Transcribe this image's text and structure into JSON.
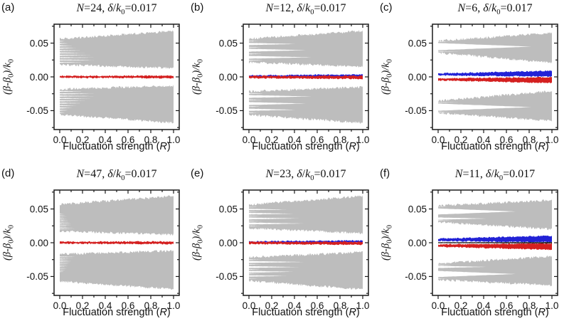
{
  "figure": {
    "axes": {
      "x_label": "Fluctuation strength (R)",
      "y_label": "(β-β₀)/k₀",
      "x_label_segments": [
        {
          "t": "Fluctuation strength ("
        },
        {
          "t": "R",
          "i": true
        },
        {
          "t": ")"
        }
      ],
      "y_label_segments": [
        {
          "t": "("
        },
        {
          "t": "β",
          "i": true
        },
        {
          "t": "-"
        },
        {
          "t": "β",
          "i": true
        },
        {
          "t": "0",
          "sub": true
        },
        {
          "t": ")/"
        },
        {
          "t": "k",
          "i": true
        },
        {
          "t": "0",
          "sub": true
        }
      ],
      "x_tick_labels": [
        "0.0",
        "0.2",
        "0.4",
        "0.6",
        "0.8",
        "1.0"
      ],
      "x_tick_values": [
        0,
        0.2,
        0.4,
        0.6,
        0.8,
        1.0
      ],
      "x_minor_ticks": [
        0.1,
        0.3,
        0.5,
        0.7,
        0.9
      ],
      "y_tick_labels": [
        "0.05",
        "0.00",
        "-0.05"
      ],
      "y_tick_values": [
        0.05,
        0,
        -0.05
      ],
      "y_minor_ticks": [
        0.075,
        0.025,
        -0.025,
        -0.075
      ],
      "xlim_draw": [
        -0.05,
        1.05
      ],
      "ylim_draw": [
        -0.078,
        0.078
      ],
      "grid": false
    },
    "colors": {
      "gray": "#bdbdbd",
      "red": "#d42020",
      "blue": "#2222d6",
      "black": "#1a1a1a",
      "axis": "#1a1a1a",
      "text": "#111111"
    }
  },
  "chart_data": [
    {
      "type": "scatter",
      "panel_label": "(a)",
      "title": "N=24, δ/k₀=0.017",
      "title_segments": [
        {
          "t": "N",
          "i": true
        },
        {
          "t": "=24, "
        },
        {
          "t": "δ",
          "i": true
        },
        {
          "t": "/"
        },
        {
          "t": "k",
          "i": true
        },
        {
          "t": "0",
          "sub": true
        },
        {
          "t": "=0.017"
        }
      ],
      "N": 24,
      "delta_over_k0": 0.017,
      "xlabel": "Fluctuation strength (R)",
      "ylabel": "(β-β₀)/k₀",
      "xlim": [
        0,
        1
      ],
      "ylim": [
        -0.078,
        0.078
      ],
      "bands": {
        "gray_envelope": {
          "at_R0": [
            0.018,
            0.056
          ],
          "at_R1": [
            0.013,
            0.068
          ],
          "mirrored": true
        },
        "gaps_y_h_closeR": [
          [
            0.0215,
            0.0013,
            0.2
          ],
          [
            0.025,
            0.0013,
            0.33
          ],
          [
            0.0285,
            0.0013,
            0.3
          ],
          [
            0.032,
            0.0013,
            0.27
          ],
          [
            0.0355,
            0.0013,
            0.23
          ],
          [
            0.039,
            0.0013,
            0.19
          ],
          [
            0.0425,
            0.0013,
            0.15
          ],
          [
            0.046,
            0.0013,
            0.11
          ],
          [
            0.0495,
            0.0012,
            0.07
          ],
          [
            0.0528,
            0.001,
            0.045
          ]
        ],
        "center": [
          {
            "color": "red",
            "at_R0": [
              -0.0013,
              0.0013
            ],
            "at_R1": [
              -0.0019,
              0.0019
            ]
          }
        ]
      }
    },
    {
      "type": "scatter",
      "panel_label": "(b)",
      "title": "N=12, δ/k₀=0.017",
      "title_segments": [
        {
          "t": "N",
          "i": true
        },
        {
          "t": "=12, "
        },
        {
          "t": "δ",
          "i": true
        },
        {
          "t": "/"
        },
        {
          "t": "k",
          "i": true
        },
        {
          "t": "0",
          "sub": true
        },
        {
          "t": "=0.017"
        }
      ],
      "N": 12,
      "delta_over_k0": 0.017,
      "xlabel": "Fluctuation strength (R)",
      "ylabel": "(β-β₀)/k₀",
      "xlim": [
        0,
        1
      ],
      "ylim": [
        -0.078,
        0.078
      ],
      "bands": {
        "gray_envelope": {
          "at_R0": [
            0.0215,
            0.0565
          ],
          "at_R1": [
            0.015,
            0.068
          ],
          "mirrored": true
        },
        "gaps_y_h_closeR": [
          [
            0.029,
            0.004,
            0.55
          ],
          [
            0.0395,
            0.0042,
            0.5
          ],
          [
            0.0487,
            0.0032,
            0.42
          ],
          [
            0.0245,
            0.001,
            0.15
          ],
          [
            0.034,
            0.001,
            0.14
          ],
          [
            0.044,
            0.0009,
            0.12
          ],
          [
            0.053,
            0.0009,
            0.1
          ]
        ],
        "center": [
          {
            "color": "blue",
            "at_R0": [
              0.0002,
              0.0022
            ],
            "at_R1": [
              0.0006,
              0.0036
            ]
          },
          {
            "color": "red",
            "at_R0": [
              -0.002,
              0.0013
            ],
            "at_R1": [
              -0.003,
              0.0015
            ]
          }
        ]
      }
    },
    {
      "type": "scatter",
      "panel_label": "(c)",
      "title": "N=6, δ/k₀=0.017",
      "title_segments": [
        {
          "t": "N",
          "i": true
        },
        {
          "t": "=6, "
        },
        {
          "t": "δ",
          "i": true
        },
        {
          "t": "/"
        },
        {
          "t": "k",
          "i": true
        },
        {
          "t": "0",
          "sub": true
        },
        {
          "t": "=0.017"
        }
      ],
      "N": 6,
      "delta_over_k0": 0.017,
      "xlabel": "Fluctuation strength (R)",
      "ylabel": "(β-β₀)/k₀",
      "xlim": [
        0,
        1
      ],
      "ylim": [
        -0.078,
        0.078
      ],
      "bands": {
        "gray_envelope": {
          "at_R0": [
            0.0355,
            0.0535
          ],
          "at_R1": [
            0.021,
            0.065
          ],
          "mirrored": true
        },
        "gaps_y_h_closeR": [
          [
            0.0448,
            0.0105,
            0.82
          ],
          [
            0.0378,
            0.0008,
            0.18
          ],
          [
            0.052,
            0.0007,
            0.12
          ]
        ],
        "center": [
          {
            "color": "blue",
            "at_R0": [
              0.0022,
              0.0052
            ],
            "at_R1": [
              0.0005,
              0.009
            ]
          },
          {
            "color": "red",
            "at_R0": [
              -0.0052,
              -0.0022
            ],
            "at_R1": [
              -0.009,
              -0.0005
            ]
          }
        ]
      }
    },
    {
      "type": "scatter",
      "panel_label": "(d)",
      "title": "N=47, δ/k₀=0.017",
      "title_segments": [
        {
          "t": "N",
          "i": true
        },
        {
          "t": "=47, "
        },
        {
          "t": "δ",
          "i": true
        },
        {
          "t": "/"
        },
        {
          "t": "k",
          "i": true
        },
        {
          "t": "0",
          "sub": true
        },
        {
          "t": "=0.017"
        }
      ],
      "N": 47,
      "delta_over_k0": 0.017,
      "xlabel": "Fluctuation strength (R)",
      "ylabel": "(β-β₀)/k₀",
      "xlim": [
        0,
        1
      ],
      "ylim": [
        -0.078,
        0.078
      ],
      "bands": {
        "gray_envelope": {
          "at_R0": [
            0.017,
            0.057
          ],
          "at_R1": [
            0.012,
            0.069
          ],
          "mirrored": true
        },
        "gaps_y_h_closeR": [
          [
            0.0205,
            0.0009,
            0.13
          ],
          [
            0.023,
            0.0009,
            0.12
          ],
          [
            0.0255,
            0.0009,
            0.11
          ],
          [
            0.028,
            0.0009,
            0.1
          ],
          [
            0.0305,
            0.0009,
            0.09
          ],
          [
            0.033,
            0.0008,
            0.08
          ],
          [
            0.0355,
            0.0008,
            0.07
          ],
          [
            0.038,
            0.0008,
            0.06
          ],
          [
            0.0405,
            0.0007,
            0.05
          ],
          [
            0.043,
            0.0007,
            0.04
          ]
        ],
        "center": [
          {
            "color": "red",
            "at_R0": [
              -0.0013,
              0.0013
            ],
            "at_R1": [
              -0.0019,
              0.0019
            ]
          }
        ]
      }
    },
    {
      "type": "scatter",
      "panel_label": "(e)",
      "title": "N=23, δ/k₀=0.017",
      "title_segments": [
        {
          "t": "N",
          "i": true
        },
        {
          "t": "=23, "
        },
        {
          "t": "δ",
          "i": true
        },
        {
          "t": "/"
        },
        {
          "t": "k",
          "i": true
        },
        {
          "t": "0",
          "sub": true
        },
        {
          "t": "=0.017"
        }
      ],
      "N": 23,
      "delta_over_k0": 0.017,
      "xlabel": "Fluctuation strength (R)",
      "ylabel": "(β-β₀)/k₀",
      "xlim": [
        0,
        1
      ],
      "ylim": [
        -0.078,
        0.078
      ],
      "bands": {
        "gray_envelope": {
          "at_R0": [
            0.0215,
            0.0565
          ],
          "at_R1": [
            0.014,
            0.069
          ],
          "mirrored": true
        },
        "gaps_y_h_closeR": [
          [
            0.0285,
            0.0028,
            0.48
          ],
          [
            0.036,
            0.0026,
            0.44
          ],
          [
            0.043,
            0.0024,
            0.4
          ],
          [
            0.0492,
            0.002,
            0.34
          ],
          [
            0.025,
            0.0008,
            0.12
          ],
          [
            0.032,
            0.0008,
            0.11
          ],
          [
            0.0395,
            0.0008,
            0.1
          ],
          [
            0.046,
            0.0007,
            0.09
          ],
          [
            0.0528,
            0.0007,
            0.08
          ]
        ],
        "center": [
          {
            "color": "blue",
            "at_R0": [
              0.0002,
              0.002
            ],
            "at_R1": [
              0.0006,
              0.0034
            ]
          },
          {
            "color": "red",
            "at_R0": [
              -0.0019,
              0.0012
            ],
            "at_R1": [
              -0.0028,
              0.0014
            ]
          }
        ]
      }
    },
    {
      "type": "scatter",
      "panel_label": "(f)",
      "title": "N=11, δ/k₀=0.017",
      "title_segments": [
        {
          "t": "N",
          "i": true
        },
        {
          "t": "=11, "
        },
        {
          "t": "δ",
          "i": true
        },
        {
          "t": "/"
        },
        {
          "t": "k",
          "i": true
        },
        {
          "t": "0",
          "sub": true
        },
        {
          "t": "=0.017"
        }
      ],
      "N": 11,
      "delta_over_k0": 0.017,
      "xlabel": "Fluctuation strength (R)",
      "ylabel": "(β-β₀)/k₀",
      "xlim": [
        0,
        1
      ],
      "ylim": [
        -0.078,
        0.078
      ],
      "bands": {
        "gray_envelope": {
          "at_R0": [
            0.0305,
            0.055
          ],
          "at_R1": [
            0.02,
            0.063
          ],
          "mirrored": true
        },
        "gaps_y_h_closeR": [
          [
            0.0358,
            0.0032,
            0.42
          ],
          [
            0.0463,
            0.009,
            0.68
          ],
          [
            0.0328,
            0.0007,
            0.12
          ],
          [
            0.053,
            0.0006,
            0.1
          ]
        ],
        "center": [
          {
            "color": "blue",
            "at_R0": [
              0.0026,
              0.006
            ],
            "at_R1": [
              0.0009,
              0.0103
            ]
          },
          {
            "color": "red",
            "at_R0": [
              -0.006,
              -0.0026
            ],
            "at_R1": [
              -0.0103,
              -0.0009
            ]
          },
          {
            "color": "black",
            "at_R0": [
              -0.0007,
              0.0007
            ],
            "at_R1": [
              -0.0009,
              0.0009
            ]
          }
        ]
      }
    }
  ]
}
